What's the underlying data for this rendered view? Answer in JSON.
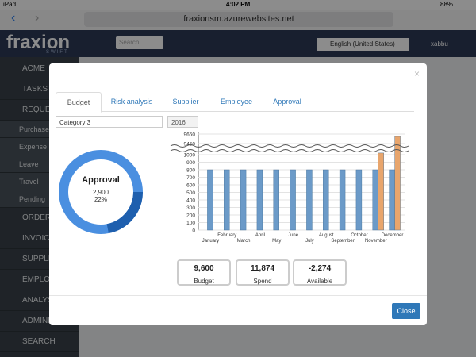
{
  "status": {
    "device": "iPad",
    "time": "4:02 PM",
    "battery": "88%"
  },
  "browser": {
    "url": "fraxionsm.azurewebsites.net"
  },
  "header": {
    "logo": "fraxion",
    "logo_sub": "SWIFT",
    "search_placeholder": "Search",
    "language": "English (United States)",
    "user": "xabbu"
  },
  "sidebar": {
    "sections": [
      "ACME",
      "TASKS",
      "REQUES"
    ],
    "request_items": [
      "Purchase",
      "Expense",
      "Leave",
      "Travel",
      "Pending it"
    ],
    "more_sections": [
      "ORDER",
      "INVOICE",
      "SUPPLIE",
      "EMPLOY",
      "ANALYS",
      "ADMINIS",
      "SEARCH"
    ]
  },
  "modal": {
    "close_icon": "×",
    "tabs": [
      "Budget",
      "Risk analysis",
      "Supplier",
      "Employee",
      "Approval"
    ],
    "category": "Category 3",
    "year": "2016",
    "donut": {
      "label": "Approval",
      "value_label": "2,900",
      "percent": 22,
      "percent_label": "22%"
    },
    "chart": {
      "type": "bar",
      "categories": [
        "January",
        "February",
        "March",
        "April",
        "May",
        "June",
        "July",
        "August",
        "September",
        "October",
        "November",
        "December"
      ],
      "series": [
        {
          "color": "#6b9ac8",
          "values": [
            800,
            800,
            800,
            800,
            800,
            800,
            800,
            800,
            800,
            800,
            800,
            800
          ]
        },
        {
          "color": "#e8a56c",
          "values": [
            null,
            null,
            null,
            null,
            null,
            null,
            null,
            null,
            null,
            null,
            2274,
            9600
          ]
        }
      ],
      "ylim": [
        0,
        9650
      ],
      "ybreak": [
        1000,
        9450
      ],
      "yticks": [
        0,
        100,
        200,
        300,
        400,
        500,
        600,
        700,
        800,
        900,
        1000,
        9450,
        9650
      ],
      "grid": true
    },
    "summary": [
      {
        "value": "9,600",
        "label": "Budget"
      },
      {
        "value": "11,874",
        "label": "Spend"
      },
      {
        "value": "-2,274",
        "label": "Available"
      }
    ],
    "close_button": "Close"
  }
}
